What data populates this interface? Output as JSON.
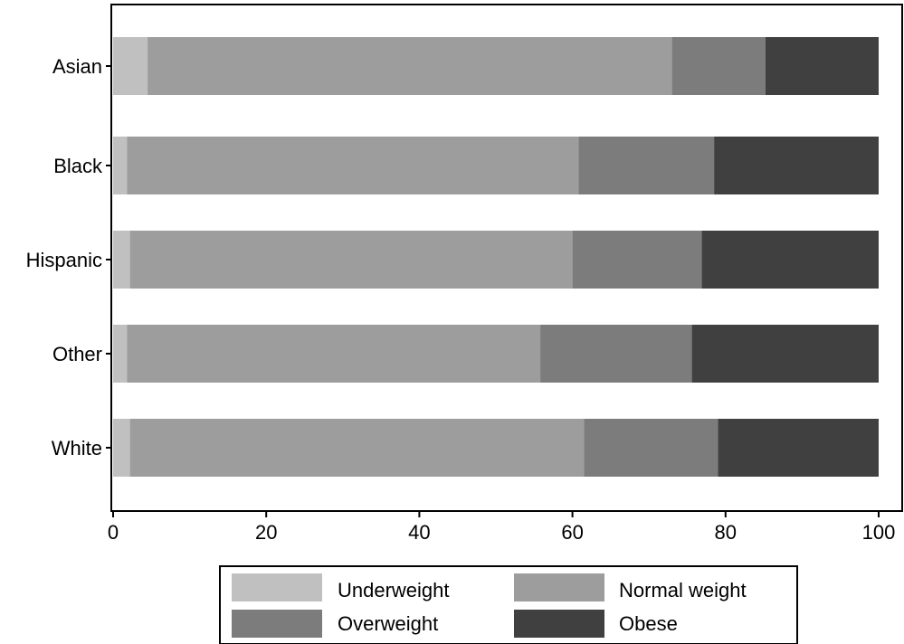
{
  "chart_data": {
    "type": "bar",
    "orientation": "horizontal",
    "stacked": true,
    "categories": [
      "Asian",
      "Black",
      "Hispanic",
      "Other",
      "White"
    ],
    "series": [
      {
        "name": "Underweight",
        "color": "#c0c0c0",
        "values": [
          4.5,
          1.8,
          2.2,
          1.8,
          2.2
        ]
      },
      {
        "name": "Normal weight",
        "color": "#9d9d9d",
        "values": [
          68.5,
          59.0,
          57.8,
          54.0,
          59.3
        ]
      },
      {
        "name": "Overweight",
        "color": "#7c7c7c",
        "values": [
          12.2,
          17.7,
          16.9,
          19.8,
          17.5
        ]
      },
      {
        "name": "Obese",
        "color": "#404040",
        "values": [
          14.8,
          21.5,
          23.1,
          24.4,
          21.0
        ]
      }
    ],
    "xlim": [
      0,
      100
    ],
    "xticks": [
      "0",
      "20",
      "40",
      "60",
      "80",
      "100"
    ],
    "grid": false,
    "legend_position": "bottom",
    "title": "",
    "xlabel": "",
    "ylabel": ""
  }
}
